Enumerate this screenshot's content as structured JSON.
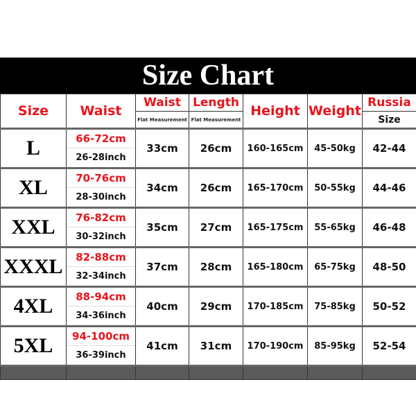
{
  "title": "Size Chart",
  "headers": {
    "size": "Size",
    "waist": "Waist",
    "flat_waist": "Waist",
    "flat_waist_sub": "Flat Measurement",
    "length": "Length",
    "length_sub": "Flat Measurement",
    "height": "Height",
    "weight": "Weight",
    "russia": "Russia",
    "russia_sub": "Size"
  },
  "rows": [
    {
      "size": "L",
      "waist_cm": "66-72cm",
      "waist_inch": "26-28inch",
      "flat_waist": "33cm",
      "length": "26cm",
      "height": "160-165cm",
      "weight": "45-50kg",
      "russia": "42-44"
    },
    {
      "size": "XL",
      "waist_cm": "70-76cm",
      "waist_inch": "28-30inch",
      "flat_waist": "34cm",
      "length": "26cm",
      "height": "165-170cm",
      "weight": "50-55kg",
      "russia": "44-46"
    },
    {
      "size": "XXL",
      "waist_cm": "76-82cm",
      "waist_inch": "30-32inch",
      "flat_waist": "35cm",
      "length": "27cm",
      "height": "165-175cm",
      "weight": "55-65kg",
      "russia": "46-48"
    },
    {
      "size": "XXXL",
      "waist_cm": "82-88cm",
      "waist_inch": "32-34inch",
      "flat_waist": "37cm",
      "length": "28cm",
      "height": "165-180cm",
      "weight": "65-75kg",
      "russia": "48-50"
    },
    {
      "size": "4XL",
      "waist_cm": "88-94cm",
      "waist_inch": "34-36inch",
      "flat_waist": "40cm",
      "length": "29cm",
      "height": "170-185cm",
      "weight": "75-85kg",
      "russia": "50-52"
    },
    {
      "size": "5XL",
      "waist_cm": "94-100cm",
      "waist_inch": "36-39inch",
      "flat_waist": "41cm",
      "length": "31cm",
      "height": "170-190cm",
      "weight": "85-95kg",
      "russia": "52-54"
    }
  ],
  "colors": {
    "accent": "#e8141c",
    "banner": "#000000",
    "footer": "#5a5a5a"
  }
}
